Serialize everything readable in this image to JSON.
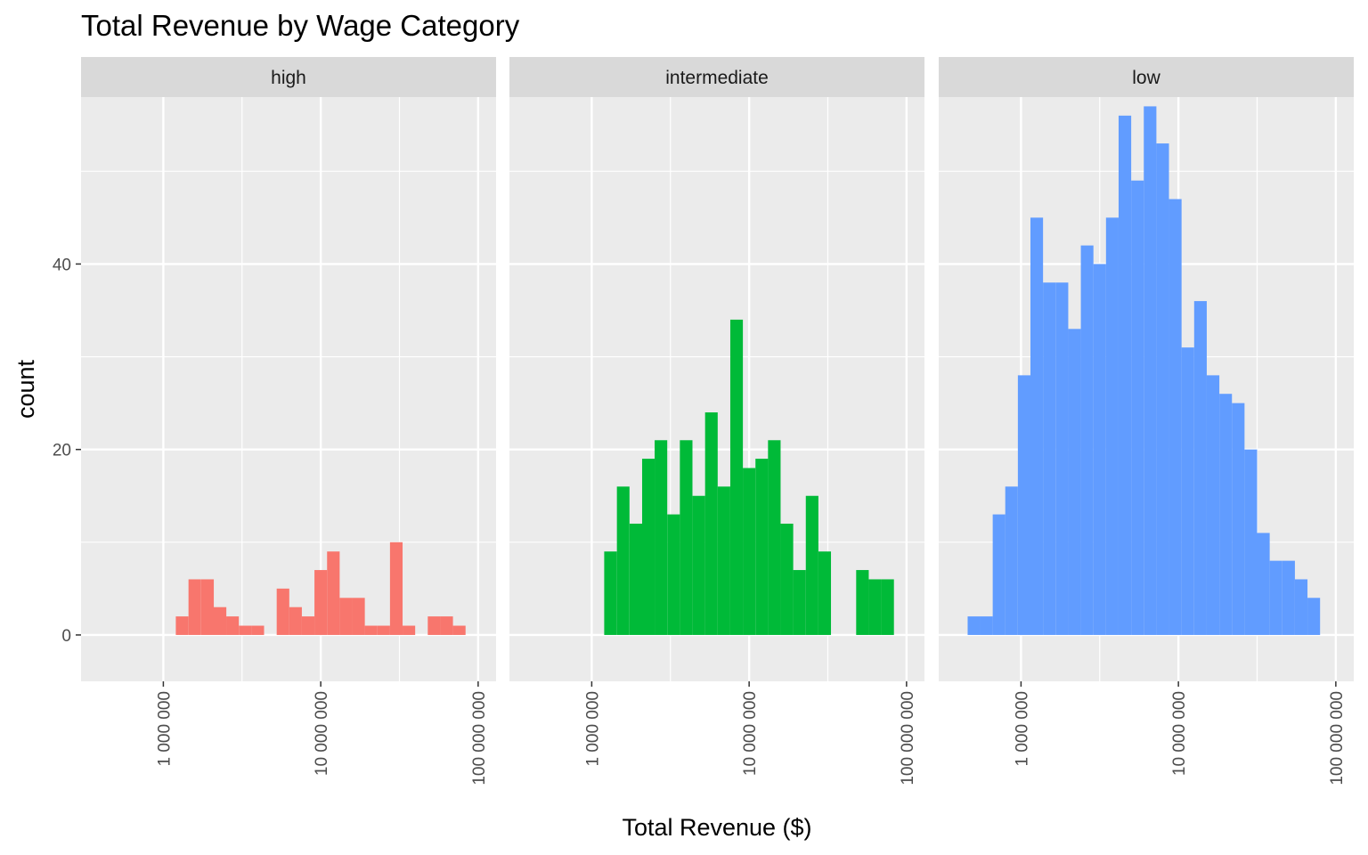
{
  "chart_data": {
    "type": "bar",
    "title": "Total Revenue by Wage Category",
    "xlabel": "Total Revenue ($)",
    "ylabel": "count",
    "x_scale": "log10",
    "xlim": [
      300000,
      130000000
    ],
    "ylim": [
      -5,
      58
    ],
    "x_ticks": [
      1000000,
      10000000,
      100000000
    ],
    "x_tick_labels": [
      "1 000 000",
      "10 000 000",
      "100 000 000"
    ],
    "y_ticks": [
      0,
      20,
      40
    ],
    "y_tick_labels": [
      "0",
      "20",
      "40"
    ],
    "grid": true,
    "legend": "none",
    "bin_log_width": 0.08,
    "panels": [
      {
        "name": "high",
        "color": "#F8766D",
        "bins": [
          {
            "start": 1200000,
            "count": 2
          },
          {
            "start": 1445000,
            "count": 6
          },
          {
            "start": 1740000,
            "count": 6
          },
          {
            "start": 2090000,
            "count": 3
          },
          {
            "start": 2510000,
            "count": 2
          },
          {
            "start": 3020000,
            "count": 1
          },
          {
            "start": 3630000,
            "count": 1
          },
          {
            "start": 4370000,
            "count": 0
          },
          {
            "start": 5250000,
            "count": 5
          },
          {
            "start": 6310000,
            "count": 3
          },
          {
            "start": 7590000,
            "count": 2
          },
          {
            "start": 9120000,
            "count": 7
          },
          {
            "start": 10970000,
            "count": 9
          },
          {
            "start": 13180000,
            "count": 4
          },
          {
            "start": 15850000,
            "count": 4
          },
          {
            "start": 19050000,
            "count": 1
          },
          {
            "start": 22910000,
            "count": 1
          },
          {
            "start": 27540000,
            "count": 10
          },
          {
            "start": 33110000,
            "count": 1
          },
          {
            "start": 39810000,
            "count": 0
          },
          {
            "start": 47860000,
            "count": 2
          },
          {
            "start": 57540000,
            "count": 2
          },
          {
            "start": 69180000,
            "count": 1
          }
        ]
      },
      {
        "name": "intermediate",
        "color": "#00BA38",
        "bins": [
          {
            "start": 1200000,
            "count": 9
          },
          {
            "start": 1445000,
            "count": 16
          },
          {
            "start": 1740000,
            "count": 12
          },
          {
            "start": 2090000,
            "count": 19
          },
          {
            "start": 2510000,
            "count": 21
          },
          {
            "start": 3020000,
            "count": 13
          },
          {
            "start": 3630000,
            "count": 21
          },
          {
            "start": 4370000,
            "count": 15
          },
          {
            "start": 5250000,
            "count": 24
          },
          {
            "start": 6310000,
            "count": 16
          },
          {
            "start": 7590000,
            "count": 34
          },
          {
            "start": 9120000,
            "count": 18
          },
          {
            "start": 10970000,
            "count": 19
          },
          {
            "start": 13180000,
            "count": 21
          },
          {
            "start": 15850000,
            "count": 12
          },
          {
            "start": 19050000,
            "count": 7
          },
          {
            "start": 22910000,
            "count": 15
          },
          {
            "start": 27540000,
            "count": 9
          },
          {
            "start": 33110000,
            "count": 0
          },
          {
            "start": 39810000,
            "count": 0
          },
          {
            "start": 47860000,
            "count": 7
          },
          {
            "start": 57540000,
            "count": 6
          },
          {
            "start": 69180000,
            "count": 6
          }
        ]
      },
      {
        "name": "low",
        "color": "#619CFF",
        "bins": [
          {
            "start": 458000,
            "count": 2
          },
          {
            "start": 550000,
            "count": 2
          },
          {
            "start": 661000,
            "count": 13
          },
          {
            "start": 794000,
            "count": 16
          },
          {
            "start": 955000,
            "count": 28
          },
          {
            "start": 1148000,
            "count": 45
          },
          {
            "start": 1380000,
            "count": 38
          },
          {
            "start": 1660000,
            "count": 38
          },
          {
            "start": 1995000,
            "count": 33
          },
          {
            "start": 2399000,
            "count": 42
          },
          {
            "start": 2884000,
            "count": 40
          },
          {
            "start": 3467000,
            "count": 45
          },
          {
            "start": 4169000,
            "count": 56
          },
          {
            "start": 5012000,
            "count": 49
          },
          {
            "start": 6026000,
            "count": 57
          },
          {
            "start": 7244000,
            "count": 53
          },
          {
            "start": 8710000,
            "count": 47
          },
          {
            "start": 10470000,
            "count": 31
          },
          {
            "start": 12590000,
            "count": 36
          },
          {
            "start": 15140000,
            "count": 28
          },
          {
            "start": 18200000,
            "count": 26
          },
          {
            "start": 21880000,
            "count": 25
          },
          {
            "start": 26300000,
            "count": 20
          },
          {
            "start": 31620000,
            "count": 11
          },
          {
            "start": 38020000,
            "count": 8
          },
          {
            "start": 45710000,
            "count": 8
          },
          {
            "start": 54950000,
            "count": 6
          },
          {
            "start": 66070000,
            "count": 4
          }
        ]
      }
    ]
  }
}
